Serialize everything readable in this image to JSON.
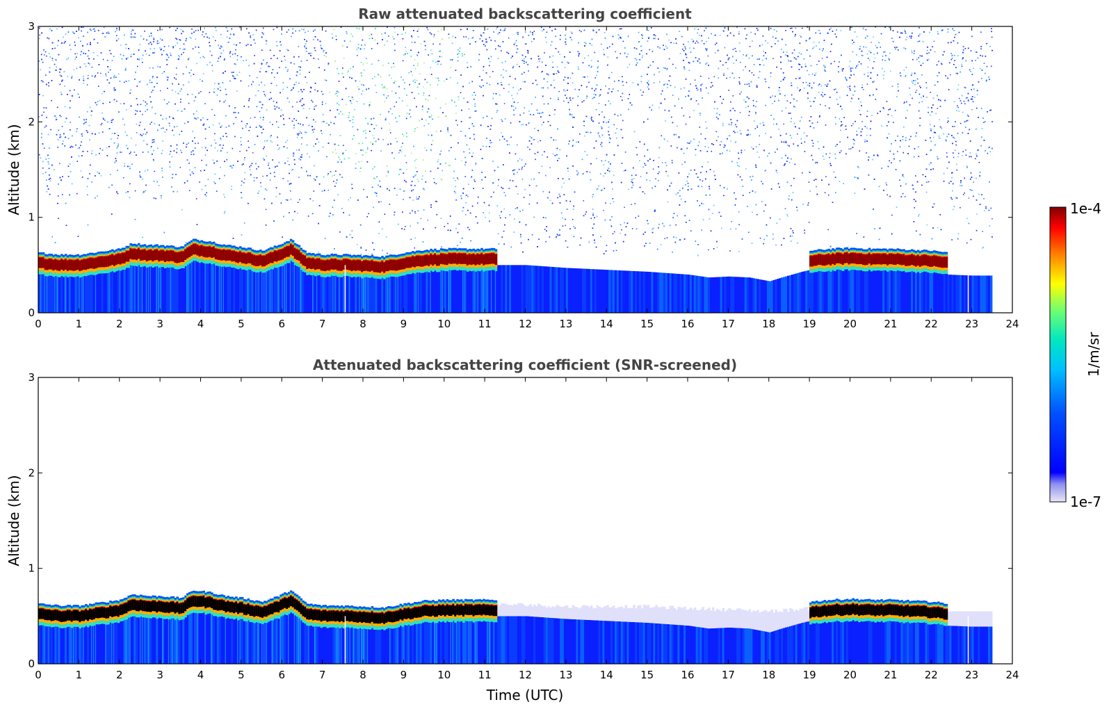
{
  "colors": {
    "background": "#ffffff",
    "title": "#444444",
    "axis": "#000000",
    "cloud_saturated_raw": "#8b0000",
    "cloud_saturated_screened": "#000000",
    "aerosol_layer": "#0010ff",
    "screened_lowsnr": "#e0e0fb",
    "colormap": [
      "#e8e8f6",
      "#0000ff",
      "#00b0ff",
      "#00e0c0",
      "#70ff70",
      "#ffff00",
      "#ff8000",
      "#ff0000",
      "#800000"
    ]
  },
  "chart_data": [
    {
      "type": "heatmap",
      "title": "Raw attenuated backscattering coefficient",
      "xlabel": "",
      "ylabel": "Altitude (km)",
      "xlim": [
        0,
        24
      ],
      "ylim": [
        0,
        3
      ],
      "xticks": [
        "0",
        "1",
        "2",
        "3",
        "4",
        "5",
        "6",
        "7",
        "8",
        "9",
        "10",
        "11",
        "12",
        "13",
        "14",
        "15",
        "16",
        "17",
        "18",
        "19",
        "20",
        "21",
        "22",
        "23",
        "24"
      ],
      "yticks": [
        "0",
        "1",
        "2",
        "3"
      ],
      "data_end_time": 23.5,
      "cloud_layer": {
        "times": [
          0,
          0.5,
          1,
          1.5,
          2,
          2.3,
          2.7,
          3,
          3.5,
          3.8,
          4.2,
          4.6,
          5,
          5.5,
          5.9,
          6.2,
          6.6,
          7,
          7.5,
          8,
          8.5,
          9,
          9.5,
          10,
          10.5,
          11,
          11.3
        ],
        "altitude_km": [
          0.52,
          0.5,
          0.5,
          0.53,
          0.56,
          0.62,
          0.6,
          0.6,
          0.58,
          0.66,
          0.64,
          0.6,
          0.58,
          0.54,
          0.6,
          0.66,
          0.52,
          0.5,
          0.5,
          0.49,
          0.48,
          0.52,
          0.55,
          0.56,
          0.56,
          0.56,
          0.56
        ]
      },
      "cloud_layer_2": {
        "times": [
          19,
          19.5,
          20,
          20.5,
          21,
          21.5,
          22,
          22.4
        ],
        "altitude_km": [
          0.54,
          0.56,
          0.57,
          0.56,
          0.56,
          0.55,
          0.54,
          0.52
        ]
      },
      "aerosol_top": {
        "times": [
          11.3,
          12,
          13,
          14,
          15,
          16,
          16.5,
          17,
          17.5,
          18,
          18.3,
          18.8,
          19
        ],
        "altitude_km": [
          0.55,
          0.55,
          0.52,
          0.5,
          0.48,
          0.45,
          0.42,
          0.43,
          0.42,
          0.38,
          0.42,
          0.48,
          0.5
        ]
      },
      "tail_top": {
        "times": [
          22.4,
          23,
          23.5
        ],
        "altitude_km": [
          0.45,
          0.44,
          0.44
        ]
      }
    },
    {
      "type": "heatmap",
      "title": "Attenuated backscattering coefficient (SNR-screened)",
      "xlabel": "Time (UTC)",
      "ylabel": "Altitude (km)",
      "xlim": [
        0,
        24
      ],
      "ylim": [
        0,
        3
      ],
      "xticks": [
        "0",
        "1",
        "2",
        "3",
        "4",
        "5",
        "6",
        "7",
        "8",
        "9",
        "10",
        "11",
        "12",
        "13",
        "14",
        "15",
        "16",
        "17",
        "18",
        "19",
        "20",
        "21",
        "22",
        "23",
        "24"
      ],
      "yticks": [
        "0",
        "1",
        "2",
        "3"
      ],
      "data_end_time": 23.5,
      "screened_residue_top": {
        "times": [
          11.3,
          12,
          13,
          14,
          15,
          16,
          17,
          18,
          19
        ],
        "altitude_km": [
          0.62,
          0.62,
          0.6,
          0.6,
          0.6,
          0.58,
          0.57,
          0.55,
          0.58
        ]
      }
    }
  ],
  "colorbar": {
    "label": "1/m/sr",
    "max_label": "1e-4",
    "min_label": "1e-7",
    "scale": "log",
    "range": [
      1e-07,
      0.0001
    ]
  }
}
